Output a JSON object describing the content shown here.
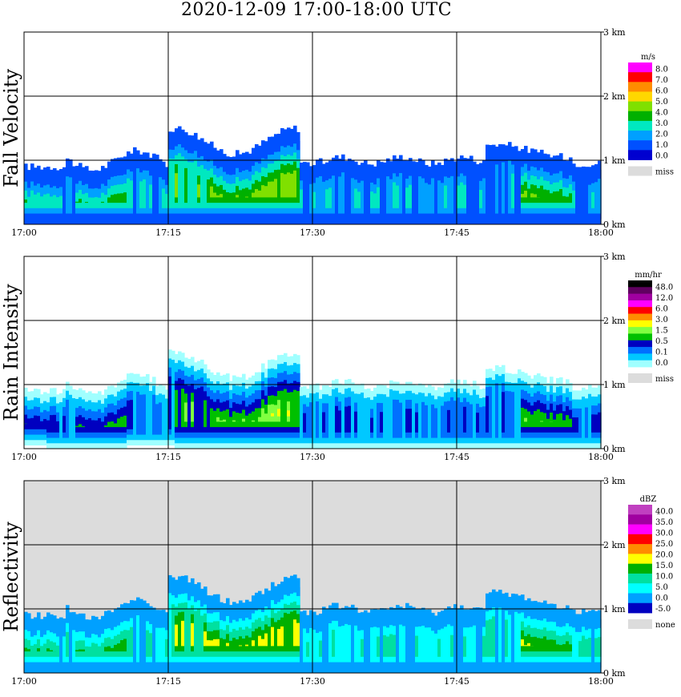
{
  "title": "2020-12-09   17:00-18:00 UTC",
  "chart_data": [
    {
      "type": "heatmap",
      "ylabel": "Fall Velocity",
      "x_ticks": [
        "17:00",
        "17:15",
        "17:30",
        "17:45",
        "18:00"
      ],
      "y_ticks": [
        "0 km",
        "1 km",
        "2 km",
        "3 km"
      ],
      "xlim": [
        "17:00",
        "18:00"
      ],
      "ylim_km": [
        0,
        3
      ],
      "grid": true,
      "legend": {
        "unit": "m/s",
        "labels": [
          "8.0",
          "7.0",
          "6.0",
          "5.0",
          "4.0",
          "3.0",
          "2.0",
          "1.0",
          "0.0"
        ],
        "colors": [
          "#ff00ff",
          "#ff0000",
          "#ff8c00",
          "#ffd700",
          "#80e000",
          "#00b000",
          "#00e8c0",
          "#00a0ff",
          "#0050ff",
          "#0000d0"
        ],
        "missing_label": "miss",
        "missing_color": "#dcdcdc"
      }
    },
    {
      "type": "heatmap",
      "ylabel": "Rain Intensity",
      "x_ticks": [
        "17:00",
        "17:15",
        "17:30",
        "17:45",
        "18:00"
      ],
      "y_ticks": [
        "0 km",
        "1 km",
        "2 km",
        "3 km"
      ],
      "xlim": [
        "17:00",
        "18:00"
      ],
      "ylim_km": [
        0,
        3
      ],
      "grid": true,
      "legend": {
        "unit": "mm/hr",
        "labels": [
          "48.0",
          "12.0",
          "6.0",
          "3.0",
          "1.5",
          "0.5",
          "0.1",
          "0.0"
        ],
        "colors": [
          "#000000",
          "#600060",
          "#a000a0",
          "#ff00ff",
          "#ff0000",
          "#ff8c00",
          "#ffff00",
          "#80ff40",
          "#00c000",
          "#0000c0",
          "#0070ff",
          "#00c8ff",
          "#a0ffff"
        ],
        "missing_label": "miss",
        "missing_color": "#dcdcdc"
      }
    },
    {
      "type": "heatmap",
      "ylabel": "Reflectivity",
      "x_ticks": [
        "17:00",
        "17:15",
        "17:30",
        "17:45",
        "18:00"
      ],
      "y_ticks": [
        "0 km",
        "1 km",
        "2 km",
        "3 km"
      ],
      "xlim": [
        "17:00",
        "18:00"
      ],
      "ylim_km": [
        0,
        3
      ],
      "grid": true,
      "legend": {
        "unit": "dBZ",
        "labels": [
          "40.0",
          "35.0",
          "30.0",
          "25.0",
          "20.0",
          "15.0",
          "10.0",
          "5.0",
          "0.0",
          "-5.0"
        ],
        "colors": [
          "#c040c0",
          "#a000a0",
          "#ff00ff",
          "#ff0000",
          "#ff8c00",
          "#ffff00",
          "#00b000",
          "#00e0a0",
          "#00ffff",
          "#00a0ff",
          "#0000c0"
        ],
        "missing_label": "none",
        "missing_color": "#dcdcdc"
      }
    }
  ]
}
